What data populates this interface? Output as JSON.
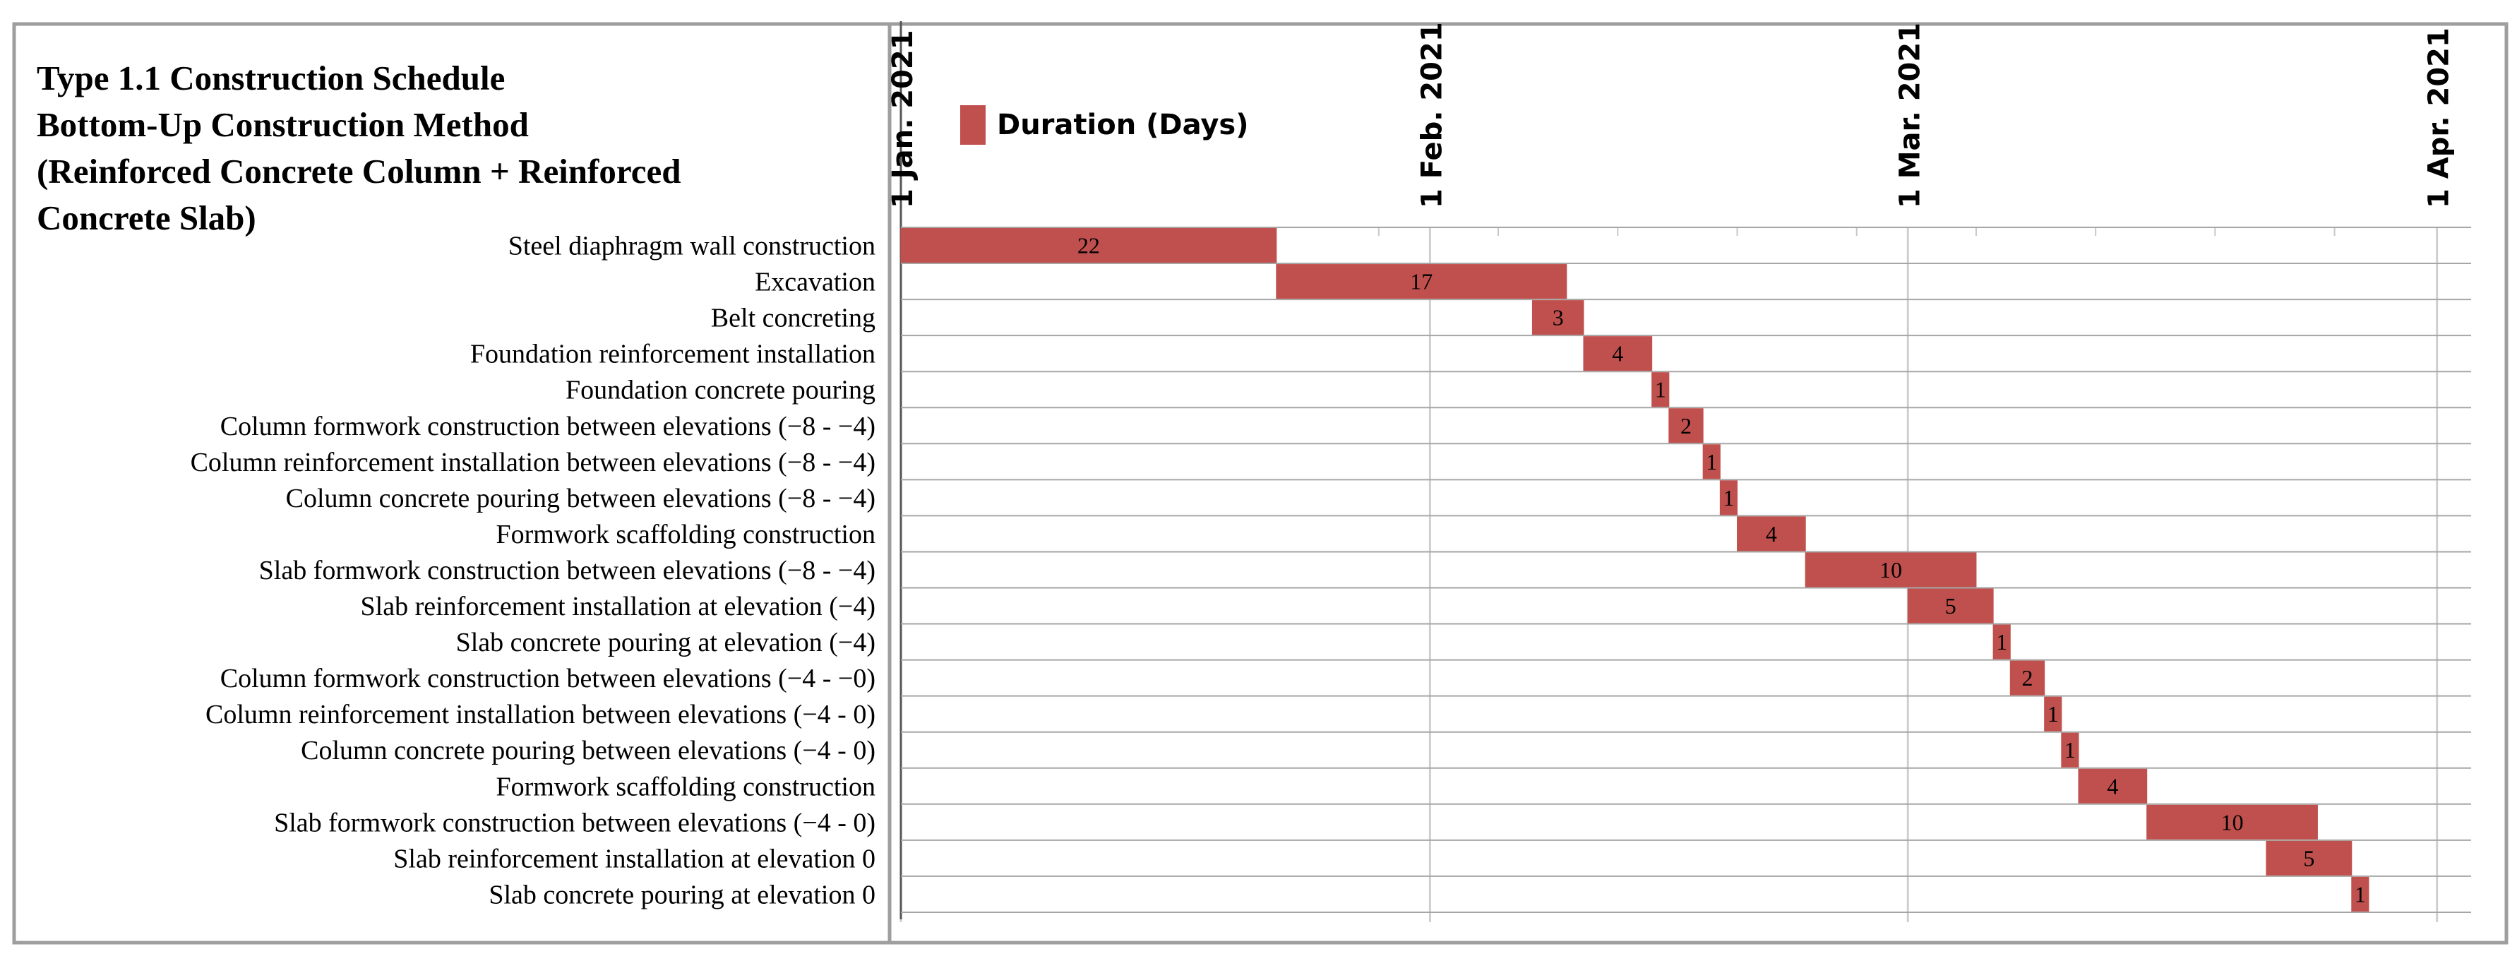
{
  "chart_data": {
    "type": "bar",
    "subtype": "gantt",
    "title_lines": [
      "Type 1.1 Construction Schedule",
      "Bottom-Up Construction Method",
      "(Reinforced Concrete Column + Reinforced",
      "Concrete Slab)"
    ],
    "legend": {
      "label": "Duration (Days)",
      "color": "#c0504d",
      "position": "top-left"
    },
    "bar_color": "#c0504d",
    "grid": true,
    "x_axis": {
      "type": "date",
      "range": [
        "2021-01-01",
        "2021-04-03"
      ],
      "ticks": [
        {
          "date": "2021-01-01",
          "label": "1 Jan. 2021"
        },
        {
          "date": "2021-02-01",
          "label": "1 Feb. 2021"
        },
        {
          "date": "2021-03-01",
          "label": "1 Mar. 2021"
        },
        {
          "date": "2021-04-01",
          "label": "1 Apr. 2021"
        }
      ]
    },
    "tasks": [
      {
        "name": "Steel diaphragm wall construction",
        "start": "2021-01-01",
        "duration": 22
      },
      {
        "name": "Excavation",
        "start": "2021-01-23",
        "duration": 17
      },
      {
        "name": "Belt concreting",
        "start": "2021-02-07",
        "duration": 3
      },
      {
        "name": "Foundation reinforcement installation",
        "start": "2021-02-10",
        "duration": 4
      },
      {
        "name": "Foundation concrete pouring",
        "start": "2021-02-14",
        "duration": 1
      },
      {
        "name": "Column formwork construction between elevations (−8 - −4)",
        "start": "2021-02-15",
        "duration": 2
      },
      {
        "name": "Column reinforcement installation between elevations (−8 - −4)",
        "start": "2021-02-17",
        "duration": 1
      },
      {
        "name": "Column concrete pouring between elevations (−8 - −4)",
        "start": "2021-02-18",
        "duration": 1
      },
      {
        "name": "Formwork scaffolding construction",
        "start": "2021-02-19",
        "duration": 4
      },
      {
        "name": "Slab formwork construction between elevations (−8 - −4)",
        "start": "2021-02-23",
        "duration": 10
      },
      {
        "name": "Slab reinforcement installation at elevation (−4)",
        "start": "2021-03-01",
        "duration": 5
      },
      {
        "name": "Slab concrete pouring at elevation (−4)",
        "start": "2021-03-06",
        "duration": 1
      },
      {
        "name": "Column formwork construction between elevations (−4 - −0)",
        "start": "2021-03-07",
        "duration": 2
      },
      {
        "name": "Column reinforcement installation between elevations (−4 - 0)",
        "start": "2021-03-09",
        "duration": 1
      },
      {
        "name": "Column concrete pouring between elevations (−4 - 0)",
        "start": "2021-03-10",
        "duration": 1
      },
      {
        "name": "Formwork scaffolding construction",
        "start": "2021-03-11",
        "duration": 4
      },
      {
        "name": "Slab formwork construction between elevations (−4 - 0)",
        "start": "2021-03-15",
        "duration": 10
      },
      {
        "name": "Slab reinforcement installation at elevation 0",
        "start": "2021-03-22",
        "duration": 5
      },
      {
        "name": "Slab concrete pouring at elevation 0",
        "start": "2021-03-27",
        "duration": 1
      }
    ]
  }
}
